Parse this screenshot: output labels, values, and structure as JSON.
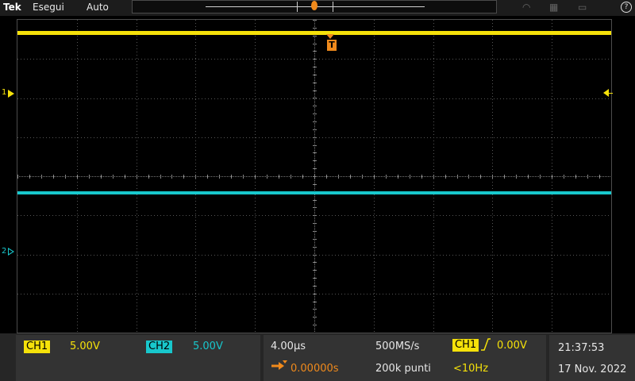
{
  "topbar": {
    "brand": "Tek",
    "run_state": "Esegui",
    "trigger_mode": "Auto"
  },
  "channels": {
    "ch1": {
      "label": "CH1",
      "scale": "5.00V",
      "ref_label": "1",
      "color": "#f5e10a"
    },
    "ch2": {
      "label": "CH2",
      "scale": "5.00V",
      "ref_label": "2",
      "color": "#18c7cc"
    }
  },
  "graticule": {
    "trigger_marker": "T"
  },
  "horizontal": {
    "time_per_div": "4.00µs",
    "sample_rate": "500MS/s",
    "position": "0.00000s",
    "record_length": "200k punti"
  },
  "trigger": {
    "source": "CH1",
    "level": "0.00V",
    "frequency": "<10Hz",
    "color": "#f08a1c"
  },
  "clock": {
    "time": "21:37:53",
    "date": "17 Nov. 2022"
  },
  "icons": [
    "wifi-icon",
    "network-icon",
    "usb-icon",
    "help-icon",
    "rising-edge-icon",
    "horizontal-position-icon"
  ]
}
